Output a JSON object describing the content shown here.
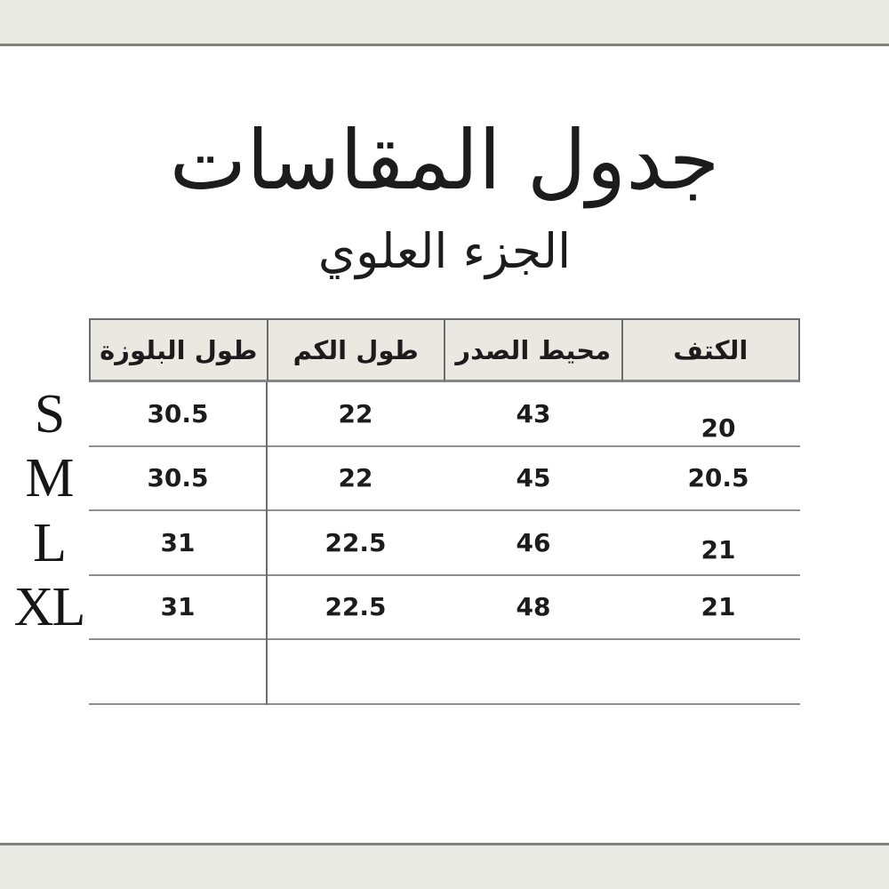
{
  "page": {
    "title": "جدول المقاسات",
    "subtitle": "الجزء العلوي"
  },
  "table": {
    "headers_ltr": [
      "طول البلوزة",
      "طول الكم",
      "محيط الصدر",
      "الكتف"
    ],
    "headers_meaning_ltr": [
      "blouse-length",
      "sleeve-length",
      "chest-circumference",
      "shoulder"
    ],
    "rows": [
      {
        "size": "S",
        "values": [
          "30.5",
          "22",
          "43",
          "20"
        ]
      },
      {
        "size": "M",
        "values": [
          "30.5",
          "22",
          "45",
          "20.5"
        ]
      },
      {
        "size": "L",
        "values": [
          "31",
          "22.5",
          "46",
          "21"
        ]
      },
      {
        "size": "XL",
        "values": [
          "31",
          "22.5",
          "48",
          "21"
        ]
      }
    ]
  },
  "colors": {
    "background": "#ffffff",
    "band": "#e9eae4",
    "band_line": "#81837f",
    "header_bg": "#e9e8e1",
    "header_border": "#6b6d70",
    "grid_line": "#8d8f8b",
    "text": "#1c1c1c"
  }
}
